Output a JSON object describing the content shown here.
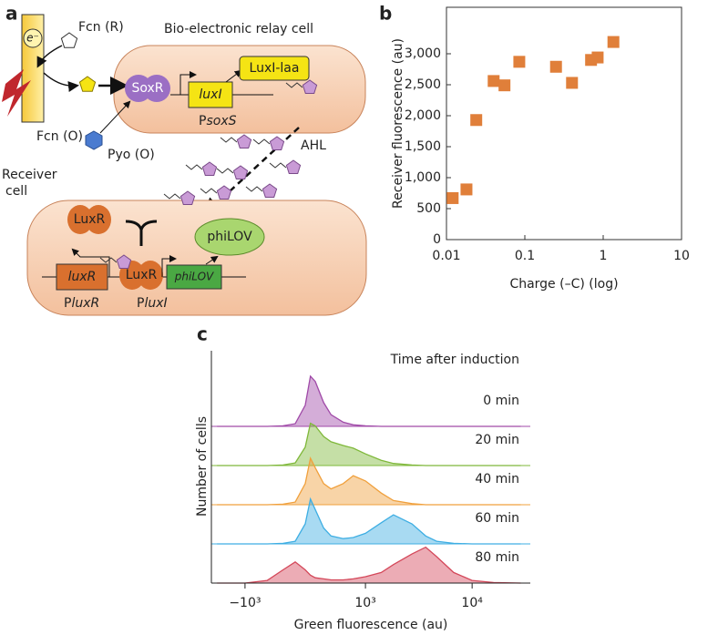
{
  "panel_a": {
    "label": "a",
    "fcn_r": "Fcn (R)",
    "relay_cell_title": "Bio-electronic relay cell",
    "electron": "e⁻",
    "luxi_laa": "LuxI-laa",
    "soxr": "SoxR",
    "luxi_gene": "luxI",
    "psoxs": {
      "prefix": "P",
      "gene": "soxS"
    },
    "fcn_o": "Fcn (O)",
    "pyo_o": "Pyo (O)",
    "ahl": "AHL",
    "receiver_label": [
      "Receiver",
      "cell"
    ],
    "luxr_protein_top": "LuxR",
    "luxr_protein_bottom": "LuxR",
    "philov_protein": "phiLOV",
    "luxr_gene": "luxR",
    "philov_gene": "phiLOV",
    "pluxr": {
      "prefix": "P",
      "gene": "luxR"
    },
    "pluxi": {
      "prefix": "P",
      "gene": "luxI"
    }
  },
  "chart_data": [
    {
      "type": "scatter",
      "panel_label": "b",
      "x_label": "Charge (–C) (log)",
      "y_label": "Receiver fluorescence (au)",
      "x": [
        0.012,
        0.018,
        0.024,
        0.04,
        0.055,
        0.085,
        0.25,
        0.4,
        0.7,
        0.85,
        1.35
      ],
      "values": [
        670,
        810,
        1930,
        2560,
        2490,
        2870,
        2790,
        2530,
        2900,
        2940,
        3190
      ],
      "color": "#e07f3a",
      "xscale": "log",
      "xlim": [
        0.01,
        10
      ],
      "xticks": [
        0.01,
        0.1,
        1,
        10
      ],
      "ylim": [
        0,
        3750
      ],
      "yticks": [
        0,
        500,
        {
          "value": 1000,
          "label": "1,000"
        },
        {
          "value": 1500,
          "label": "1,500"
        },
        {
          "value": 2000,
          "label": "2,000"
        },
        {
          "value": 2500,
          "label": "2,500"
        },
        {
          "value": 3000,
          "label": "3,000"
        }
      ]
    },
    {
      "type": "ridgeline",
      "panel_label": "c",
      "x_label": "Green fluorescence (au)",
      "y_label": "Number of cells",
      "legend_title": "Time after induction",
      "xscale": "symlog",
      "xlim": [
        -2270,
        29850
      ],
      "xticks": [
        {
          "value": -1000,
          "label": "−10³"
        },
        {
          "value": 1000,
          "label": "10³"
        },
        {
          "value": 10000,
          "label": "10⁴"
        }
      ],
      "ylim": [
        0,
        100
      ],
      "x": [
        -2000,
        -1000,
        -500,
        -250,
        -100,
        0,
        50,
        100,
        200,
        300,
        500,
        700,
        1000,
        1500,
        2000,
        3000,
        4000,
        5000,
        7000,
        10000,
        15000,
        25000
      ],
      "series": [
        {
          "name": "0 min",
          "color": "#a04aa8",
          "values": [
            0,
            0,
            0,
            1,
            5,
            40,
            95,
            85,
            45,
            22,
            8,
            3,
            1,
            0,
            0,
            0,
            0,
            0,
            0,
            0,
            0,
            0
          ]
        },
        {
          "name": "20 min",
          "color": "#7fb83a",
          "values": [
            0,
            0,
            0,
            1,
            5,
            35,
            80,
            75,
            55,
            45,
            38,
            33,
            22,
            10,
            4,
            1,
            0,
            0,
            0,
            0,
            0,
            0
          ]
        },
        {
          "name": "40 min",
          "color": "#f0a03c",
          "values": [
            0,
            0,
            0,
            1,
            5,
            40,
            88,
            70,
            40,
            30,
            40,
            55,
            45,
            22,
            8,
            2,
            0,
            0,
            0,
            0,
            0,
            0
          ]
        },
        {
          "name": "60 min",
          "color": "#3eaee3",
          "values": [
            0,
            0,
            0,
            1,
            5,
            38,
            85,
            65,
            30,
            15,
            10,
            12,
            20,
            40,
            55,
            38,
            15,
            5,
            1,
            0,
            0,
            0
          ]
        },
        {
          "name": "80 min",
          "color": "#d4485a",
          "values": [
            0,
            0,
            5,
            25,
            40,
            25,
            15,
            10,
            8,
            6,
            6,
            8,
            12,
            20,
            35,
            55,
            68,
            50,
            20,
            5,
            1,
            0
          ]
        }
      ]
    }
  ]
}
